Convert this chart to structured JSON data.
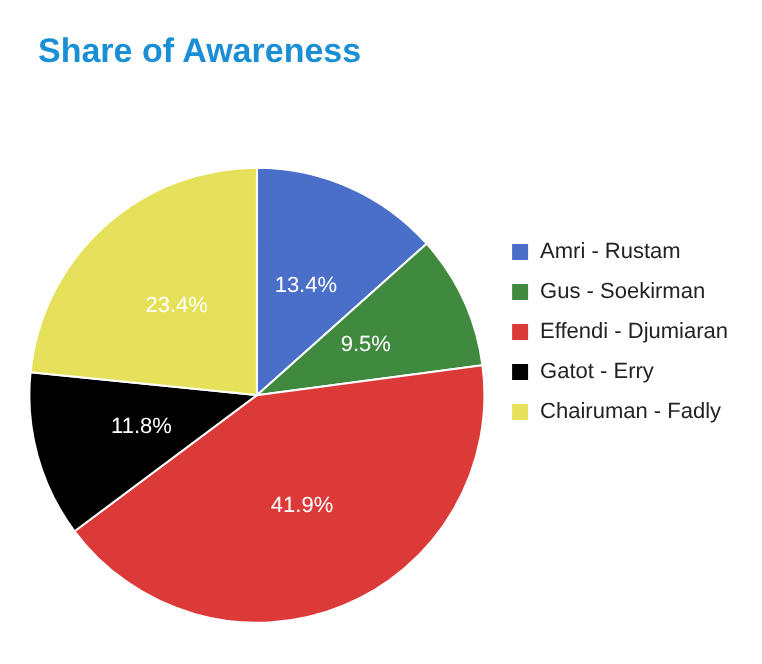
{
  "chart_data": {
    "type": "pie",
    "title": "Share of Awareness",
    "categories": [
      "Amri - Rustam",
      "Gus - Soekirman",
      "Effendi - Djumiaran",
      "Gatot - Erry",
      "Chairuman - Fadly"
    ],
    "values": [
      13.4,
      9.5,
      41.9,
      11.8,
      23.4
    ],
    "value_labels": [
      "13.4%",
      "9.5%",
      "41.9%",
      "11.8%",
      "23.4%"
    ],
    "colors": [
      "#4a6fc9",
      "#3f8a3e",
      "#dc3a38",
      "#000000",
      "#e6e15a"
    ],
    "legend": "right"
  }
}
